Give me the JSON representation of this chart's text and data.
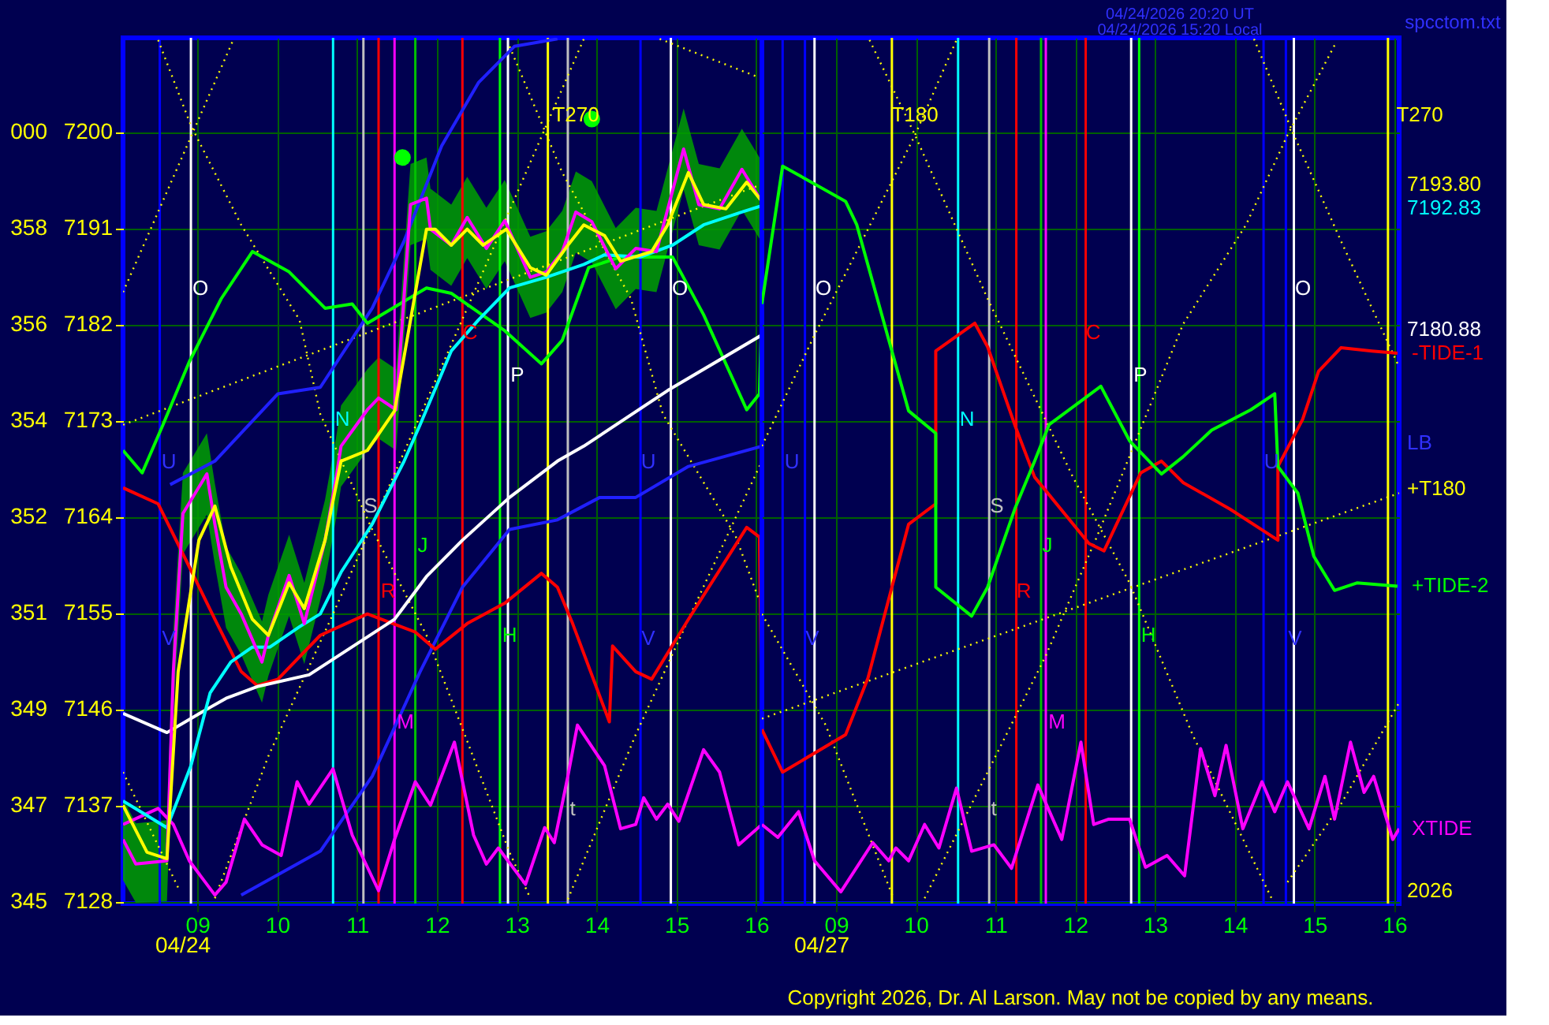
{
  "chart_data": [
    {
      "type": "line",
      "xlim": [
        8.07,
        16.07
      ],
      "ylim": [
        7127.8,
        7208.8
      ],
      "xticks": [
        {
          "value": 9,
          "label": "09"
        },
        10,
        11,
        12,
        13,
        14,
        15,
        16
      ],
      "yticks": [
        7128,
        7137,
        7146,
        7155,
        7164,
        7173,
        7182,
        7191,
        7200
      ],
      "grid": true,
      "ref_lines": [
        {
          "axis": "x",
          "value": 8.53,
          "color": "#0000ff"
        },
        {
          "axis": "x",
          "value": 8.92,
          "color": "#ffffff"
        },
        {
          "axis": "x",
          "value": 10.7,
          "color": "#00ffff"
        },
        {
          "axis": "x",
          "value": 11.08,
          "color": "#c0c0c0"
        },
        {
          "axis": "x",
          "value": 11.27,
          "color": "#ff0000"
        },
        {
          "axis": "x",
          "value": 11.47,
          "color": "#ff00ff"
        },
        {
          "axis": "x",
          "value": 11.73,
          "color": "#00c000"
        },
        {
          "axis": "x",
          "value": 12.32,
          "color": "#ff0000"
        },
        {
          "axis": "x",
          "value": 12.79,
          "color": "#00ff00"
        },
        {
          "axis": "x",
          "value": 12.89,
          "color": "#ffffff"
        },
        {
          "axis": "x",
          "value": 13.39,
          "color": "#ffff00"
        },
        {
          "axis": "x",
          "value": 13.64,
          "color": "#c0c0c0"
        },
        {
          "axis": "x",
          "value": 14.55,
          "color": "#0000ff"
        },
        {
          "axis": "x",
          "value": 14.93,
          "color": "#ffffff"
        }
      ],
      "series": [
        {
          "color": "#ffff00",
          "line_style": "dotted",
          "x": [
            8.07,
            16.07
          ],
          "values": [
            7172.6,
            7195.1
          ]
        },
        {
          "color": "#ffff00",
          "line_style": "dotted",
          "x": [
            14.79,
            16.0
          ],
          "values": [
            7208.7,
            7205.2
          ]
        },
        {
          "color": "#ffff00",
          "line_style": "dotted",
          "x": [
            8.51,
            8.92,
            9.55,
            10.28,
            10.54,
            11.19,
            11.87,
            12.38,
            12.91,
            13.17
          ],
          "values": [
            7208.6,
            7200.6,
            7191.3,
            7182.4,
            7173.6,
            7162.8,
            7152.9,
            7143.0,
            7132.6,
            7128.3
          ]
        },
        {
          "color": "#ffff00",
          "line_style": "dotted",
          "x": [
            9.22,
            9.89,
            10.7,
            12.38,
            13.84
          ],
          "values": [
            7128.3,
            7141.6,
            7154.9,
            7183.5,
            7208.7
          ]
        },
        {
          "color": "#ffff00",
          "line_style": "dotted",
          "x": [
            12.91,
            13.57,
            14.43,
            14.83,
            15.74,
            16.07
          ],
          "values": [
            7208.0,
            7196.2,
            7184.4,
            7173.6,
            7162.2,
            7155.5
          ]
        },
        {
          "color": "#ffff00",
          "line_style": "dotted",
          "x": [
            13.64,
            14.49,
            15.15,
            16.07
          ],
          "values": [
            7128.2,
            7143.6,
            7154.4,
            7169.2
          ]
        },
        {
          "color": "#ffff00",
          "line_style": "dotted",
          "x": [
            8.07,
            8.76
          ],
          "values": [
            7140.1,
            7129.3
          ]
        },
        {
          "color": "#ffff00",
          "line_style": "dotted",
          "x": [
            8.07,
            9.45
          ],
          "values": [
            7185.0,
            7208.6
          ]
        },
        {
          "color": "#2020ff",
          "x": [
            8.66,
            9.22,
            10.01,
            10.54,
            11.19,
            11.59,
            12.06,
            12.52,
            12.97,
            13.51
          ],
          "values": [
            7167.0,
            7169.2,
            7175.5,
            7176.1,
            7183.5,
            7189.8,
            7198.7,
            7204.6,
            7208.0,
            7208.7
          ]
        },
        {
          "color": "#2020ff",
          "x": [
            9.55,
            10.54,
            11.19,
            11.79,
            12.32,
            12.91,
            13.51,
            14.04,
            14.49,
            15.15,
            16.07
          ],
          "values": [
            7128.6,
            7132.7,
            7139.7,
            7149.5,
            7157.4,
            7162.8,
            7163.7,
            7165.8,
            7165.8,
            7168.7,
            7170.6
          ]
        },
        {
          "color": "#ff0000",
          "x": [
            8.07,
            8.51,
            8.9,
            9.22,
            9.55,
            9.75,
            10.01,
            10.54,
            11.13,
            11.73,
            11.98,
            12.38,
            12.85,
            13.31,
            13.51,
            13.7,
            14.16,
            14.2,
            14.49,
            14.69,
            15.15,
            15.88,
            16.04,
            16.07
          ],
          "values": [
            7166.7,
            7165.2,
            7159.3,
            7154.4,
            7149.5,
            7148.2,
            7148.8,
            7152.9,
            7154.9,
            7153.2,
            7151.6,
            7154.0,
            7155.9,
            7158.7,
            7157.4,
            7154.0,
            7144.8,
            7151.9,
            7149.5,
            7148.8,
            7154.4,
            7163.0,
            7162.1,
            7144.1
          ]
        },
        {
          "color": "#00ff00",
          "x": [
            8.07,
            8.31,
            8.57,
            8.9,
            9.3,
            9.69,
            10.15,
            10.6,
            10.94,
            11.13,
            11.87,
            12.18,
            12.85,
            13.31,
            13.57,
            13.9,
            14.3,
            14.95,
            15.34,
            15.88,
            16.04,
            16.07
          ],
          "values": [
            7170.2,
            7168.1,
            7172.6,
            7178.5,
            7184.4,
            7188.8,
            7186.9,
            7183.5,
            7183.9,
            7182.1,
            7185.4,
            7184.9,
            7181.4,
            7178.3,
            7180.5,
            7187.3,
            7188.3,
            7188.3,
            7182.9,
            7174.0,
            7175.5,
            7183.9
          ]
        },
        {
          "color": "#ff00ff",
          "x": [
            8.07,
            8.51,
            8.7,
            8.9,
            9.22,
            9.36,
            9.59,
            9.81,
            10.05,
            10.25,
            10.4,
            10.7,
            10.94,
            11.27,
            11.47,
            11.73,
            11.92,
            12.22,
            12.46,
            12.62,
            12.77,
            13.11,
            13.35,
            13.47,
            13.64,
            13.76,
            14.1,
            14.3,
            14.49,
            14.59,
            14.75,
            14.89,
            15.03,
            15.34,
            15.54,
            15.78,
            16.07
          ],
          "values": [
            7135.2,
            7136.7,
            7135.2,
            7131.8,
            7128.6,
            7129.8,
            7135.7,
            7133.3,
            7132.3,
            7139.2,
            7137.1,
            7140.4,
            7134.2,
            7129.0,
            7133.8,
            7139.2,
            7137.0,
            7142.9,
            7134.2,
            7131.5,
            7133.0,
            7129.6,
            7134.9,
            7133.5,
            7139.7,
            7144.5,
            7140.7,
            7134.8,
            7135.2,
            7137.7,
            7135.7,
            7137.1,
            7135.5,
            7142.2,
            7140.1,
            7133.3,
            7135.2
          ]
        },
        {
          "color": "#ffffff",
          "x": [
            8.07,
            8.62,
            9.1,
            9.36,
            9.75,
            10.4,
            11.08,
            11.47,
            11.87,
            12.32,
            12.91,
            13.51,
            13.84,
            14.89,
            16.07
          ],
          "values": [
            7145.6,
            7143.8,
            7145.9,
            7147.0,
            7148.1,
            7149.2,
            7152.5,
            7154.4,
            7158.4,
            7161.8,
            7165.8,
            7169.2,
            7170.6,
            7175.8,
            7181.0
          ]
        },
        {
          "color": "#00ffff",
          "x": [
            8.07,
            8.62,
            8.92,
            9.16,
            9.42,
            9.69,
            9.91,
            10.28,
            10.54,
            10.8,
            11.19,
            11.59,
            11.79,
            12.18,
            12.52,
            12.91,
            13.37,
            13.84,
            14.1,
            14.55,
            14.95,
            15.34,
            15.82,
            16.07
          ],
          "values": [
            7137.4,
            7134.9,
            7140.7,
            7147.5,
            7150.4,
            7151.8,
            7151.8,
            7153.7,
            7154.9,
            7158.8,
            7163.3,
            7169.2,
            7172.6,
            7179.5,
            7182.4,
            7185.4,
            7186.4,
            7187.6,
            7188.5,
            7188.3,
            7189.4,
            7191.3,
            7192.5,
            7193.1
          ]
        },
        {
          "color": "#ff00ff",
          "x": [
            8.07,
            8.23,
            8.62,
            8.7,
            8.82,
            9.12,
            9.22,
            9.36,
            9.55,
            9.81,
            9.89,
            10.15,
            10.34,
            10.6,
            10.74,
            10.8,
            11.13,
            11.27,
            11.49,
            11.67,
            11.87,
            11.92,
            12.18,
            12.38,
            12.62,
            12.85,
            13.17,
            13.37,
            13.57,
            13.74,
            13.94,
            14.24,
            14.49,
            14.75,
            15.09,
            15.28,
            15.54,
            15.82,
            16.04
          ],
          "values": [
            7133.8,
            7131.5,
            7131.8,
            7149.5,
            7164.3,
            7168.0,
            7163.3,
            7157.4,
            7154.9,
            7150.4,
            7152.9,
            7158.5,
            7154.0,
            7161.8,
            7167.7,
            7170.6,
            7174.0,
            7175.1,
            7174.0,
            7193.2,
            7193.8,
            7190.9,
            7189.4,
            7192.0,
            7189.1,
            7191.7,
            7186.4,
            7186.9,
            7188.8,
            7192.5,
            7191.6,
            7187.2,
            7189.1,
            7188.8,
            7198.4,
            7193.2,
            7192.8,
            7196.5,
            7193.8
          ],
          "upper": [
            7137.6,
            7135.3,
            7135.6,
            7153.3,
            7168.1,
            7171.8,
            7167.1,
            7161.2,
            7158.7,
            7154.2,
            7156.7,
            7162.3,
            7157.8,
            7165.6,
            7171.5,
            7174.4,
            7177.8,
            7178.9,
            7177.8,
            7197.0,
            7197.6,
            7194.7,
            7193.2,
            7195.8,
            7192.9,
            7195.5,
            7190.2,
            7190.7,
            7192.6,
            7196.3,
            7195.4,
            7191.0,
            7192.9,
            7192.6,
            7202.2,
            7197.0,
            7196.6,
            7200.3,
            7197.6
          ],
          "lower": [
            7130.0,
            7127.9,
            7128.0,
            7145.7,
            7160.5,
            7164.2,
            7159.5,
            7153.6,
            7151.1,
            7146.6,
            7149.1,
            7154.7,
            7150.2,
            7158.0,
            7163.9,
            7166.8,
            7170.2,
            7171.3,
            7170.2,
            7189.4,
            7190.0,
            7187.1,
            7185.6,
            7188.2,
            7185.3,
            7187.9,
            7182.6,
            7183.1,
            7185.0,
            7188.7,
            7187.8,
            7183.4,
            7185.3,
            7185.0,
            7194.6,
            7189.4,
            7189.0,
            7192.7,
            7190.0
          ]
        },
        {
          "color": "#ffff00",
          "x": [
            8.07,
            8.37,
            8.62,
            8.76,
            9.02,
            9.22,
            9.42,
            9.69,
            9.89,
            10.15,
            10.34,
            10.6,
            10.8,
            11.13,
            11.47,
            11.67,
            11.87,
            11.98,
            12.18,
            12.38,
            12.58,
            12.87,
            13.17,
            13.37,
            13.64,
            13.84,
            14.1,
            14.3,
            14.69,
            14.89,
            15.15,
            15.34,
            15.62,
            15.88,
            16.07
          ],
          "values": [
            7137.0,
            7132.6,
            7132.0,
            7149.5,
            7161.8,
            7165.0,
            7159.3,
            7154.4,
            7152.9,
            7157.8,
            7155.4,
            7161.8,
            7169.2,
            7170.2,
            7173.9,
            7182.4,
            7190.9,
            7190.9,
            7189.4,
            7190.9,
            7189.4,
            7190.9,
            7187.3,
            7186.6,
            7189.4,
            7191.3,
            7190.3,
            7187.9,
            7188.8,
            7191.3,
            7196.2,
            7193.2,
            7192.8,
            7195.3,
            7193.5
          ]
        },
        {
          "type": "scatter",
          "color": "#00ff00",
          "marker": "circle",
          "x": [
            11.57,
            13.94
          ],
          "values": [
            7197.6,
            7201.2
          ]
        }
      ],
      "annotations": [
        "345",
        "347",
        "349",
        "351",
        "352",
        "354",
        "356",
        "358",
        "000",
        "O",
        "U",
        "N",
        "S",
        "C",
        "P",
        "R",
        "J",
        "H",
        "M",
        "t",
        "V",
        "V",
        "O",
        "U",
        "T270",
        "04/24"
      ]
    },
    {
      "type": "line",
      "xlim": [
        8.07,
        16.06
      ],
      "ylim": [
        7127.8,
        7208.8
      ],
      "xticks": [
        {
          "value": 9,
          "label": "09"
        },
        10,
        11,
        12,
        13,
        14,
        15,
        16
      ],
      "yticks": [
        7128,
        7137,
        7146,
        7155,
        7164,
        7173,
        7182,
        7191,
        7200
      ],
      "tick_labels": "x",
      "grid": true,
      "ref_lines": [
        {
          "axis": "x",
          "value": 8.33,
          "color": "#0000ff"
        },
        {
          "axis": "x",
          "value": 8.61,
          "color": "#0000ff"
        },
        {
          "axis": "x",
          "value": 8.73,
          "color": "#ffffff"
        },
        {
          "axis": "x",
          "value": 9.7,
          "color": "#ffff00"
        },
        {
          "axis": "x",
          "value": 10.53,
          "color": "#00ffff"
        },
        {
          "axis": "x",
          "value": 10.92,
          "color": "#c0c0c0"
        },
        {
          "axis": "x",
          "value": 11.26,
          "color": "#ff0000"
        },
        {
          "axis": "x",
          "value": 11.57,
          "color": "#00c000"
        },
        {
          "axis": "x",
          "value": 11.63,
          "color": "#ff00ff"
        },
        {
          "axis": "x",
          "value": 12.13,
          "color": "#ff0000"
        },
        {
          "axis": "x",
          "value": 12.7,
          "color": "#ffffff"
        },
        {
          "axis": "x",
          "value": 12.8,
          "color": "#00ff00"
        },
        {
          "axis": "x",
          "value": 14.36,
          "color": "#0000ff"
        },
        {
          "axis": "x",
          "value": 14.64,
          "color": "#0000ff"
        },
        {
          "axis": "x",
          "value": 14.74,
          "color": "#ffffff"
        },
        {
          "axis": "x",
          "value": 15.92,
          "color": "#ffff00"
        }
      ],
      "series": [
        {
          "color": "#ffff00",
          "line_style": "dotted",
          "x": [
            8.07,
            16.06
          ],
          "values": [
            7145.1,
            7166.2
          ]
        },
        {
          "color": "#ffff00",
          "line_style": "dotted",
          "x": [
            9.42,
            9.99,
            10.9,
            11.97,
            12.68,
            13.47,
            14.46
          ],
          "values": [
            7208.6,
            7199.7,
            7184.4,
            7167.7,
            7157.8,
            7143.6,
            7128.3
          ]
        },
        {
          "color": "#ffff00",
          "line_style": "dotted",
          "x": [
            10.11,
            10.9,
            11.63,
            12.28,
            13.35,
            14.14,
            14.66,
            15.25
          ],
          "values": [
            7128.3,
            7140.1,
            7151.0,
            7162.3,
            7182.0,
            7191.3,
            7199.7,
            7208.1
          ]
        },
        {
          "color": "#ffff00",
          "line_style": "dotted",
          "x": [
            14.24,
            14.74,
            15.33,
            16.06
          ],
          "values": [
            7208.7,
            7199.7,
            7189.8,
            7178.0
          ]
        },
        {
          "color": "#ffff00",
          "line_style": "dotted",
          "x": [
            8.07,
            8.73,
            9.4,
            9.99,
            10.51
          ],
          "values": [
            7170.6,
            7181.0,
            7190.9,
            7199.7,
            7208.6
          ]
        },
        {
          "color": "#ffff00",
          "line_style": "dotted",
          "x": [
            8.07,
            8.87,
            9.72
          ],
          "values": [
            7154.9,
            7144.5,
            7128.3
          ]
        },
        {
          "color": "#ffff00",
          "line_style": "dotted",
          "x": [
            14.66,
            15.33,
            16.06
          ],
          "values": [
            7129.8,
            7137.1,
            7146.6
          ]
        },
        {
          "color": "#ff0000",
          "name": "-TIDE-1",
          "x": [
            8.07,
            8.33,
            9.12,
            9.4,
            9.7,
            9.91,
            10.25,
            10.25,
            10.74,
            10.9,
            11.24,
            11.49,
            12.17,
            12.36,
            12.82,
            13.08,
            13.35,
            13.94,
            14.54,
            14.54,
            14.85,
            15.05,
            15.33,
            15.72,
            16.04
          ],
          "values": [
            7144.1,
            7140.1,
            7143.6,
            7148.9,
            7157.4,
            7163.3,
            7165.2,
            7179.5,
            7182.1,
            7179.9,
            7172.6,
            7167.7,
            7161.5,
            7160.8,
            7168.1,
            7169.2,
            7167.2,
            7164.7,
            7161.8,
            7168.7,
            7173.1,
            7177.6,
            7179.8,
            7179.5,
            7179.3
          ]
        },
        {
          "color": "#00ff00",
          "name": "+TIDE-2",
          "x": [
            8.07,
            8.33,
            9.12,
            9.26,
            9.7,
            9.91,
            10.25,
            10.25,
            10.7,
            10.9,
            11.24,
            11.49,
            11.67,
            12.32,
            12.68,
            13.08,
            13.35,
            13.71,
            14.2,
            14.5,
            14.54,
            14.79,
            14.99,
            15.25,
            15.53,
            16.04
          ],
          "values": [
            7183.9,
            7196.8,
            7193.5,
            7191.3,
            7179.5,
            7173.9,
            7171.8,
            7157.4,
            7154.7,
            7157.4,
            7164.7,
            7169.2,
            7172.6,
            7176.2,
            7171.1,
            7168.0,
            7169.6,
            7172.1,
            7174.0,
            7175.5,
            7168.7,
            7166.2,
            7160.3,
            7157.1,
            7157.8,
            7157.5
          ]
        },
        {
          "color": "#ff00ff",
          "name": "XTIDE",
          "x": [
            8.07,
            8.27,
            8.53,
            8.73,
            9.06,
            9.46,
            9.66,
            9.75,
            9.91,
            10.11,
            10.29,
            10.51,
            10.7,
            10.98,
            11.2,
            11.53,
            11.83,
            12.07,
            12.23,
            12.42,
            12.68,
            12.88,
            13.15,
            13.37,
            13.57,
            13.75,
            13.89,
            14.1,
            14.34,
            14.5,
            14.66,
            14.93,
            15.13,
            15.25,
            15.45,
            15.62,
            15.74,
            15.98,
            16.06
          ],
          "values": [
            7135.2,
            7134.0,
            7136.4,
            7131.8,
            7128.9,
            7133.5,
            7131.8,
            7133.0,
            7131.8,
            7135.2,
            7133.0,
            7138.6,
            7132.7,
            7133.3,
            7131.1,
            7138.9,
            7133.8,
            7142.9,
            7135.2,
            7135.7,
            7135.7,
            7131.2,
            7132.3,
            7130.4,
            7142.3,
            7137.9,
            7142.6,
            7134.8,
            7139.2,
            7136.4,
            7139.2,
            7134.8,
            7139.7,
            7135.7,
            7142.9,
            7138.2,
            7139.7,
            7133.8,
            7134.8
          ]
        }
      ],
      "annotations": [
        "O",
        "O",
        "U",
        "U",
        "N",
        "S",
        "P",
        "C",
        "R",
        "J",
        "H",
        "M",
        "t",
        "V",
        "V",
        "T180",
        "T270",
        "7193.80",
        "7192.83",
        "7180.88",
        "LB",
        "+T180",
        "2026",
        "04/27",
        "04/24/2026 20:20  UT",
        "04/24/2026 15:20  Local",
        "spcctom.txt",
        "Copyright 2026, Dr. Al Larson. May not be copied by any means."
      ]
    }
  ]
}
